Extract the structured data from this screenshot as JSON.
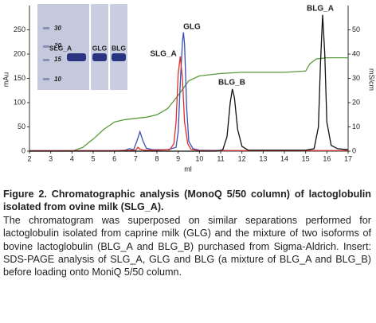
{
  "chart_data": {
    "type": "line",
    "xlabel": "ml",
    "ylabel": "mAu",
    "y2label": "mS/cm",
    "xlim": [
      2,
      17
    ],
    "xticks": [
      2,
      3,
      4,
      5,
      6,
      7,
      8,
      9,
      10,
      11,
      12,
      13,
      14,
      15,
      16,
      17
    ],
    "ylim": [
      0,
      300
    ],
    "yticks": [
      0,
      50,
      100,
      150,
      200,
      250
    ],
    "y2lim": [
      0,
      60
    ],
    "y2ticks": [
      0,
      10,
      20,
      30,
      40,
      50
    ],
    "series": [
      {
        "color": "#3a4fb5",
        "x": [
          2,
          4,
          6,
          6.5,
          6.7,
          6.9,
          7.05,
          7.2,
          7.35,
          7.5,
          7.8,
          8.5,
          8.9,
          9.0,
          9.1,
          9.2,
          9.25,
          9.3,
          9.4,
          9.5,
          9.7,
          10,
          12,
          17
        ],
        "values": [
          1,
          1,
          1,
          2,
          5,
          3,
          20,
          40,
          20,
          6,
          3,
          3,
          8,
          40,
          140,
          225,
          245,
          220,
          90,
          20,
          5,
          2,
          1,
          1
        ]
      },
      {
        "color": "#d9302a",
        "x": [
          2,
          6,
          7,
          7.1,
          7.2,
          7.4,
          8,
          8.6,
          8.8,
          8.9,
          9.0,
          9.1,
          9.2,
          9.3,
          9.45,
          9.6,
          10,
          17
        ],
        "values": [
          1,
          1,
          2,
          8,
          4,
          2,
          2,
          3,
          15,
          60,
          160,
          195,
          150,
          60,
          15,
          4,
          1,
          1
        ]
      },
      {
        "color": "#111111",
        "x": [
          2,
          10.8,
          11.1,
          11.3,
          11.45,
          11.55,
          11.65,
          11.8,
          12,
          12.3,
          15,
          15.4,
          15.6,
          15.7,
          15.8,
          15.9,
          16,
          16.2,
          16.5,
          17
        ],
        "values": [
          0,
          0,
          3,
          30,
          100,
          128,
          110,
          45,
          10,
          2,
          2,
          5,
          50,
          180,
          281,
          200,
          60,
          12,
          5,
          3
        ]
      },
      {
        "color": "#5a9a3a",
        "axis": "y2",
        "x": [
          2,
          4,
          4.5,
          5,
          5.5,
          6,
          6.5,
          7,
          7.5,
          8,
          8.5,
          9,
          9.5,
          10,
          11,
          12,
          13,
          14,
          15,
          15.2,
          15.5,
          16,
          17
        ],
        "values": [
          0,
          0,
          1.5,
          5,
          9,
          12,
          13,
          13.5,
          14,
          15,
          17.5,
          23,
          29,
          31,
          32,
          32.5,
          32.5,
          32.5,
          33,
          36,
          38,
          38.5,
          38.5
        ]
      }
    ],
    "annotations": [
      {
        "text": "GLG",
        "color": "#3a4fb5"
      },
      {
        "text": "SLG_A",
        "color": "#d9302a"
      },
      {
        "text": "BLG_B",
        "color": "#111111"
      },
      {
        "text": "BLG_A",
        "color": "#111111"
      }
    ],
    "inset": {
      "markers": [
        "30",
        "20",
        "15",
        "10"
      ],
      "lanes": [
        "SLG_A",
        "GLG",
        "BLG"
      ]
    }
  },
  "caption": {
    "title": "Figure 2. Chromatographic analysis (MonoQ 5/50 column) of lactoglobulin isolated from ovine milk (SLG_A).",
    "text": "The chromatogram was superposed on similar separations performed for lactoglobulin isolated from caprine milk (GLG) and the mixture of two isoforms of bovine lactoglobulin (BLG_A and BLG_B) purchased from Sigma-Aldrich. Insert: SDS-PAGE analysis of SLG_A, GLG and BLG (a mixture of BLG_A and BLG_B) before loading onto MoniQ 5/50 column."
  }
}
